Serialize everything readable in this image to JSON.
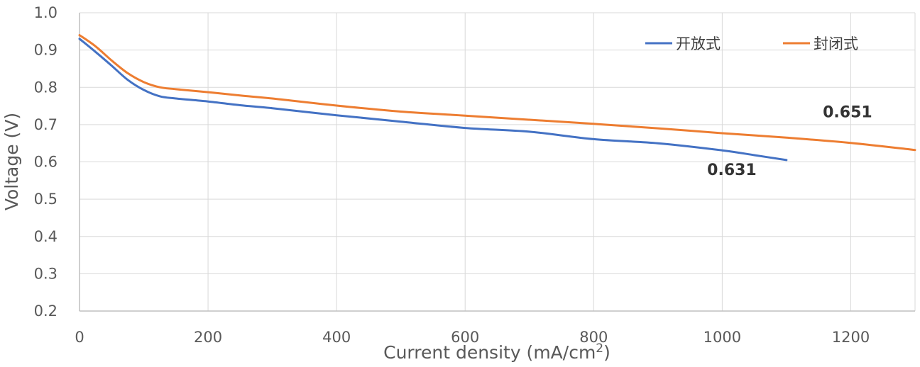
{
  "chart_data": {
    "type": "line",
    "title": "",
    "xlabel": "Current density (mA/cm",
    "xlabel_superscript": "2",
    "xlabel_close": ")",
    "ylabel": "Voltage (V)",
    "xlim": [
      0,
      1300
    ],
    "ylim": [
      0.2,
      1.0
    ],
    "x_ticks": [
      "0",
      "200",
      "400",
      "600",
      "800",
      "1000",
      "1200"
    ],
    "x_tick_values": [
      0,
      200,
      400,
      600,
      800,
      1000,
      1200
    ],
    "y_ticks": [
      "0.2",
      "0.3",
      "0.4",
      "0.5",
      "0.6",
      "0.7",
      "0.8",
      "0.9",
      "1.0"
    ],
    "y_tick_values": [
      0.2,
      0.3,
      0.4,
      0.5,
      0.6,
      0.7,
      0.8,
      0.9,
      1.0
    ],
    "grid": true,
    "legend_position": "top-right",
    "series": [
      {
        "name": "开放式",
        "color": "#4472C4",
        "points": [
          [
            0,
            0.93
          ],
          [
            25,
            0.895
          ],
          [
            50,
            0.858
          ],
          [
            75,
            0.82
          ],
          [
            100,
            0.793
          ],
          [
            125,
            0.776
          ],
          [
            150,
            0.77
          ],
          [
            200,
            0.762
          ],
          [
            250,
            0.752
          ],
          [
            300,
            0.744
          ],
          [
            400,
            0.725
          ],
          [
            500,
            0.708
          ],
          [
            600,
            0.691
          ],
          [
            700,
            0.681
          ],
          [
            800,
            0.661
          ],
          [
            900,
            0.65
          ],
          [
            1000,
            0.631
          ],
          [
            1050,
            0.618
          ],
          [
            1100,
            0.605
          ]
        ]
      },
      {
        "name": "封闭式",
        "color": "#ED7D31",
        "points": [
          [
            0,
            0.94
          ],
          [
            25,
            0.91
          ],
          [
            50,
            0.872
          ],
          [
            75,
            0.838
          ],
          [
            100,
            0.814
          ],
          [
            125,
            0.8
          ],
          [
            150,
            0.795
          ],
          [
            200,
            0.787
          ],
          [
            250,
            0.778
          ],
          [
            300,
            0.77
          ],
          [
            400,
            0.751
          ],
          [
            500,
            0.735
          ],
          [
            600,
            0.724
          ],
          [
            700,
            0.713
          ],
          [
            800,
            0.702
          ],
          [
            900,
            0.69
          ],
          [
            1000,
            0.677
          ],
          [
            1100,
            0.665
          ],
          [
            1200,
            0.651
          ],
          [
            1300,
            0.632
          ]
        ]
      }
    ],
    "annotations": [
      {
        "text": "0.631",
        "near_series": "开放式",
        "x": 1015,
        "y": 0.565
      },
      {
        "text": "0.651",
        "near_series": "封闭式",
        "x": 1195,
        "y": 0.72
      }
    ]
  }
}
